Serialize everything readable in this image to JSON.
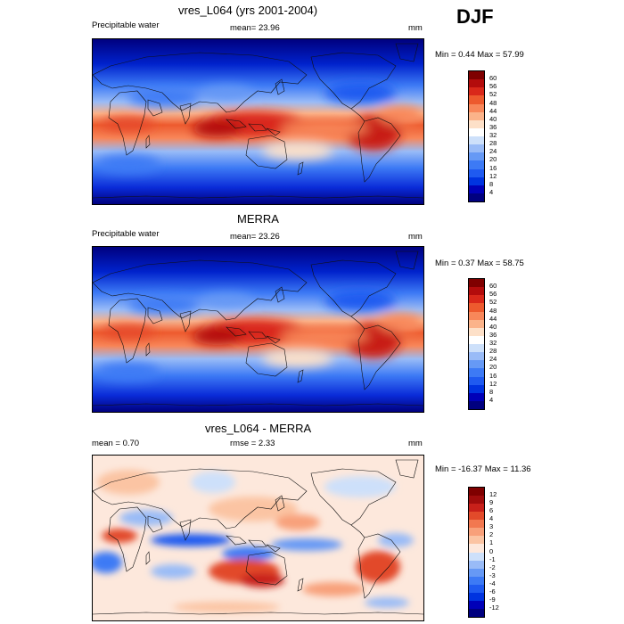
{
  "season": "DJF",
  "panels": [
    {
      "title": "vres_L064 (yrs 2001-2004)",
      "left_label": "Precipitable water",
      "center_label": "mean=  23.96",
      "units": "mm",
      "minmax": "Min =   0.44 Max =  57.99",
      "kind": "field"
    },
    {
      "title": "MERRA",
      "left_label": "Precipitable water",
      "center_label": "mean=  23.26",
      "units": "mm",
      "minmax": "Min =   0.37 Max =  58.75",
      "kind": "field"
    },
    {
      "title": "vres_L064 - MERRA",
      "left_label": "mean =   0.70",
      "center_label": "rmse =   2.33",
      "units": "mm",
      "minmax": "Min = -16.37 Max =  11.36",
      "kind": "diff"
    }
  ],
  "chart_data": [
    {
      "type": "heatmap",
      "title": "vres_L064 (yrs 2001-2004)",
      "variable": "Precipitable water",
      "units": "mm",
      "mean": 23.96,
      "min": 0.44,
      "max": 57.99,
      "colorbar_levels": [
        4,
        8,
        12,
        16,
        20,
        24,
        28,
        32,
        36,
        40,
        44,
        48,
        52,
        56,
        60
      ],
      "colorbar_colors": [
        "#00007f",
        "#0000b8",
        "#0033e0",
        "#1f5af0",
        "#3d7af5",
        "#6699f5",
        "#99bbf7",
        "#cde0fa",
        "#ffffff",
        "#fde0c8",
        "#fbb38a",
        "#f8875a",
        "#ed5a2e",
        "#d9281a",
        "#b30c0c",
        "#7f0000"
      ]
    },
    {
      "type": "heatmap",
      "title": "MERRA",
      "variable": "Precipitable water",
      "units": "mm",
      "mean": 23.26,
      "min": 0.37,
      "max": 58.75,
      "colorbar_levels": [
        4,
        8,
        12,
        16,
        20,
        24,
        28,
        32,
        36,
        40,
        44,
        48,
        52,
        56,
        60
      ],
      "colorbar_colors": [
        "#00007f",
        "#0000b8",
        "#0033e0",
        "#1f5af0",
        "#3d7af5",
        "#6699f5",
        "#99bbf7",
        "#cde0fa",
        "#ffffff",
        "#fde0c8",
        "#fbb38a",
        "#f8875a",
        "#ed5a2e",
        "#d9281a",
        "#b30c0c",
        "#7f0000"
      ]
    },
    {
      "type": "heatmap",
      "title": "vres_L064 - MERRA",
      "units": "mm",
      "mean": 0.7,
      "rmse": 2.33,
      "min": -16.37,
      "max": 11.36,
      "colorbar_levels": [
        -12,
        -9,
        -6,
        -4,
        -3,
        -2,
        -1,
        0,
        1,
        2,
        3,
        4,
        6,
        9,
        12
      ],
      "colorbar_colors": [
        "#00007f",
        "#0000b8",
        "#0033e0",
        "#1f5af0",
        "#3d7af5",
        "#6699f5",
        "#99bbf7",
        "#cde0fa",
        "#fde8dc",
        "#fbc4a3",
        "#f8a07a",
        "#f27850",
        "#e24a2a",
        "#c8201a",
        "#a00c0c",
        "#7f0000"
      ]
    }
  ]
}
